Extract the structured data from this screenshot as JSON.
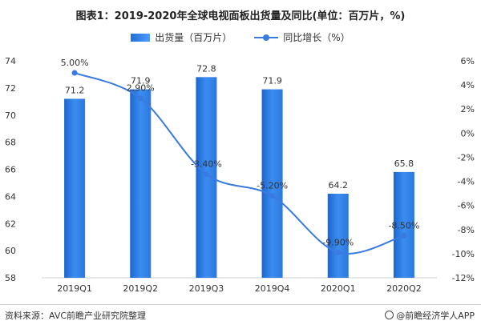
{
  "title": "图表1：2019-2020年全球电视面板出货量及同比(单位：百万片，%)",
  "legend": {
    "bar_label": "出货量（百万片）",
    "line_label": "同比增长（%）"
  },
  "source": "资料来源：AVC前瞻产业研究院整理",
  "credit": "@前瞻经济学人APP",
  "colors": {
    "bar": "#2f7de4",
    "line": "#3a7be0",
    "axis": "#cfcfcf"
  },
  "chart_data": {
    "type": "bar",
    "categories": [
      "2019Q1",
      "2019Q2",
      "2019Q3",
      "2019Q4",
      "2020Q1",
      "2020Q2"
    ],
    "series": [
      {
        "name": "出货量（百万片）",
        "type": "bar",
        "axis": "left",
        "values": [
          71.2,
          71.9,
          72.8,
          71.9,
          64.2,
          65.8
        ],
        "labels": [
          "71.2",
          "71.9",
          "72.8",
          "71.9",
          "64.2",
          "65.8"
        ]
      },
      {
        "name": "同比增长（%）",
        "type": "line",
        "axis": "right",
        "values": [
          5.0,
          2.9,
          -3.4,
          -5.2,
          -9.9,
          -8.5
        ],
        "labels": [
          "5.00%",
          "2.90%",
          "-3.40%",
          "-5.20%",
          "-9.90%",
          "-8.50%"
        ]
      }
    ],
    "y_left": {
      "range": [
        58,
        74
      ],
      "ticks": [
        "58",
        "60",
        "62",
        "64",
        "66",
        "68",
        "70",
        "72",
        "74"
      ]
    },
    "y_right": {
      "range": [
        -12,
        6
      ],
      "ticks": [
        "6%",
        "4%",
        "2%",
        "0%",
        "-2%",
        "-4%",
        "-6%",
        "-8%",
        "-10%",
        "-12%"
      ]
    },
    "grid": false,
    "legend_position": "top-center"
  }
}
